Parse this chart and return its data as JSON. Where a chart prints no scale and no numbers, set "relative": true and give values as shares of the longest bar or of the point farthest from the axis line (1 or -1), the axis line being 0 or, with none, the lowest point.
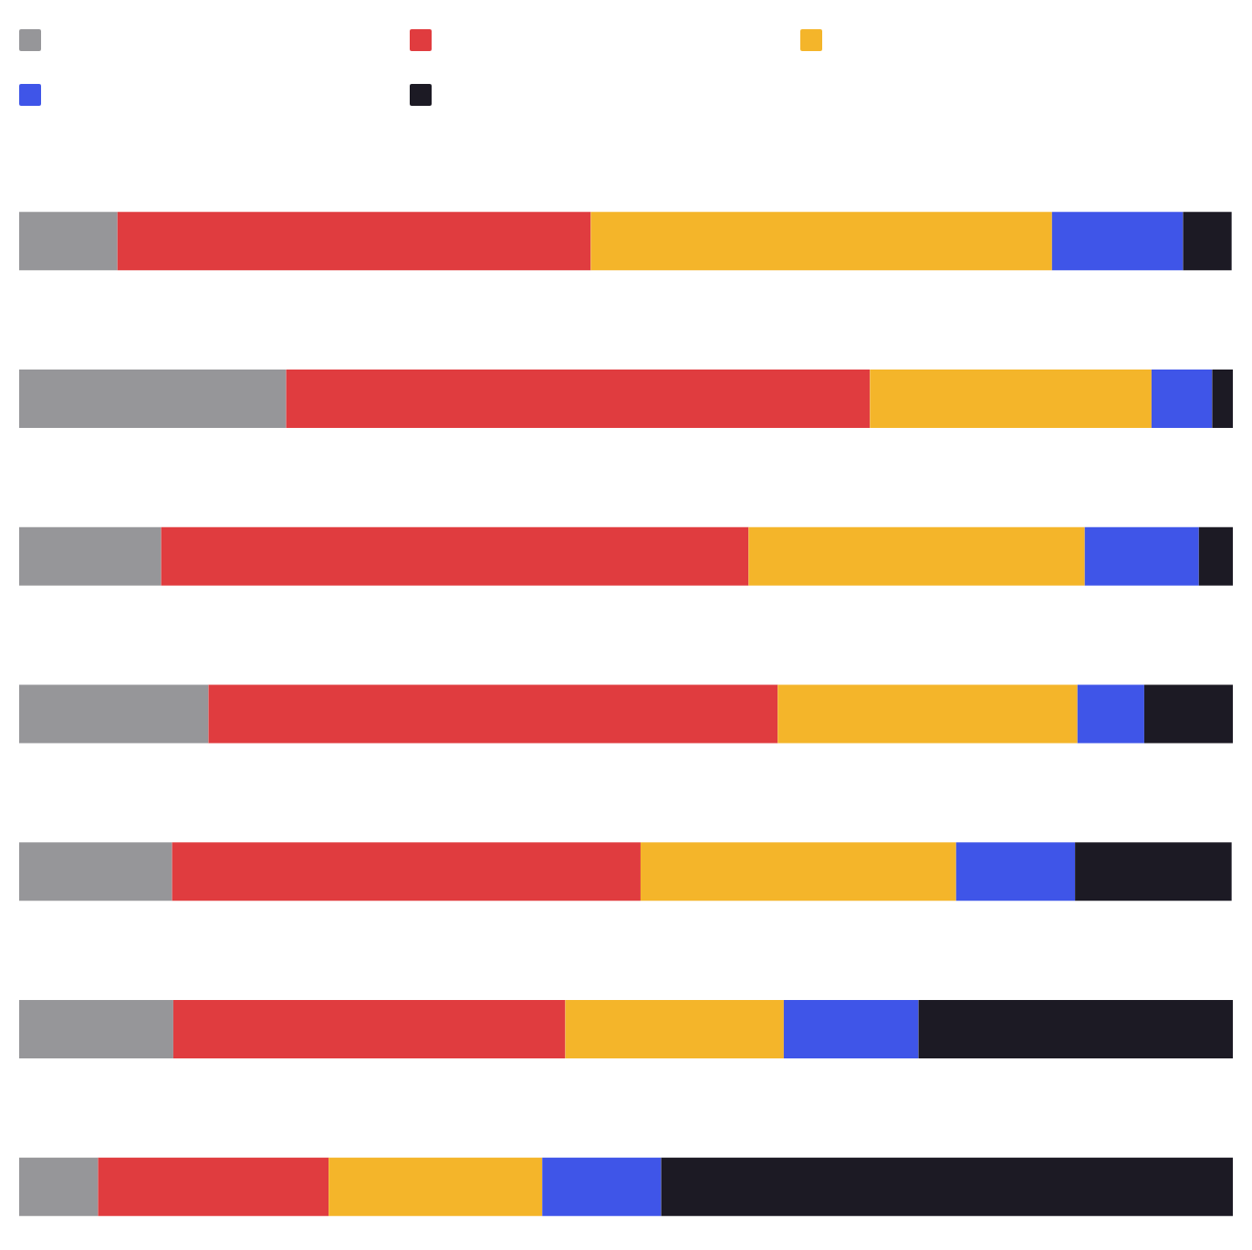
{
  "chart_data": {
    "type": "bar",
    "orientation": "horizontal",
    "stacked": true,
    "relative": true,
    "categories": [
      null,
      null,
      null,
      null,
      null,
      null,
      null
    ],
    "series": [
      {
        "color": "#969699",
        "values": [
          0.081,
          0.22,
          0.117,
          0.156,
          0.126,
          0.127,
          0.065
        ]
      },
      {
        "color": "#e03c3f",
        "values": [
          0.39,
          0.481,
          0.484,
          0.469,
          0.386,
          0.323,
          0.19
        ]
      },
      {
        "color": "#f4b52a",
        "values": [
          0.38,
          0.232,
          0.277,
          0.247,
          0.26,
          0.18,
          0.176
        ]
      },
      {
        "color": "#3f55e8",
        "values": [
          0.108,
          0.05,
          0.094,
          0.055,
          0.098,
          0.111,
          0.098
        ]
      },
      {
        "color": "#1c1a24",
        "values": [
          0.04,
          0.017,
          0.028,
          0.073,
          0.129,
          0.259,
          0.471
        ]
      }
    ]
  }
}
